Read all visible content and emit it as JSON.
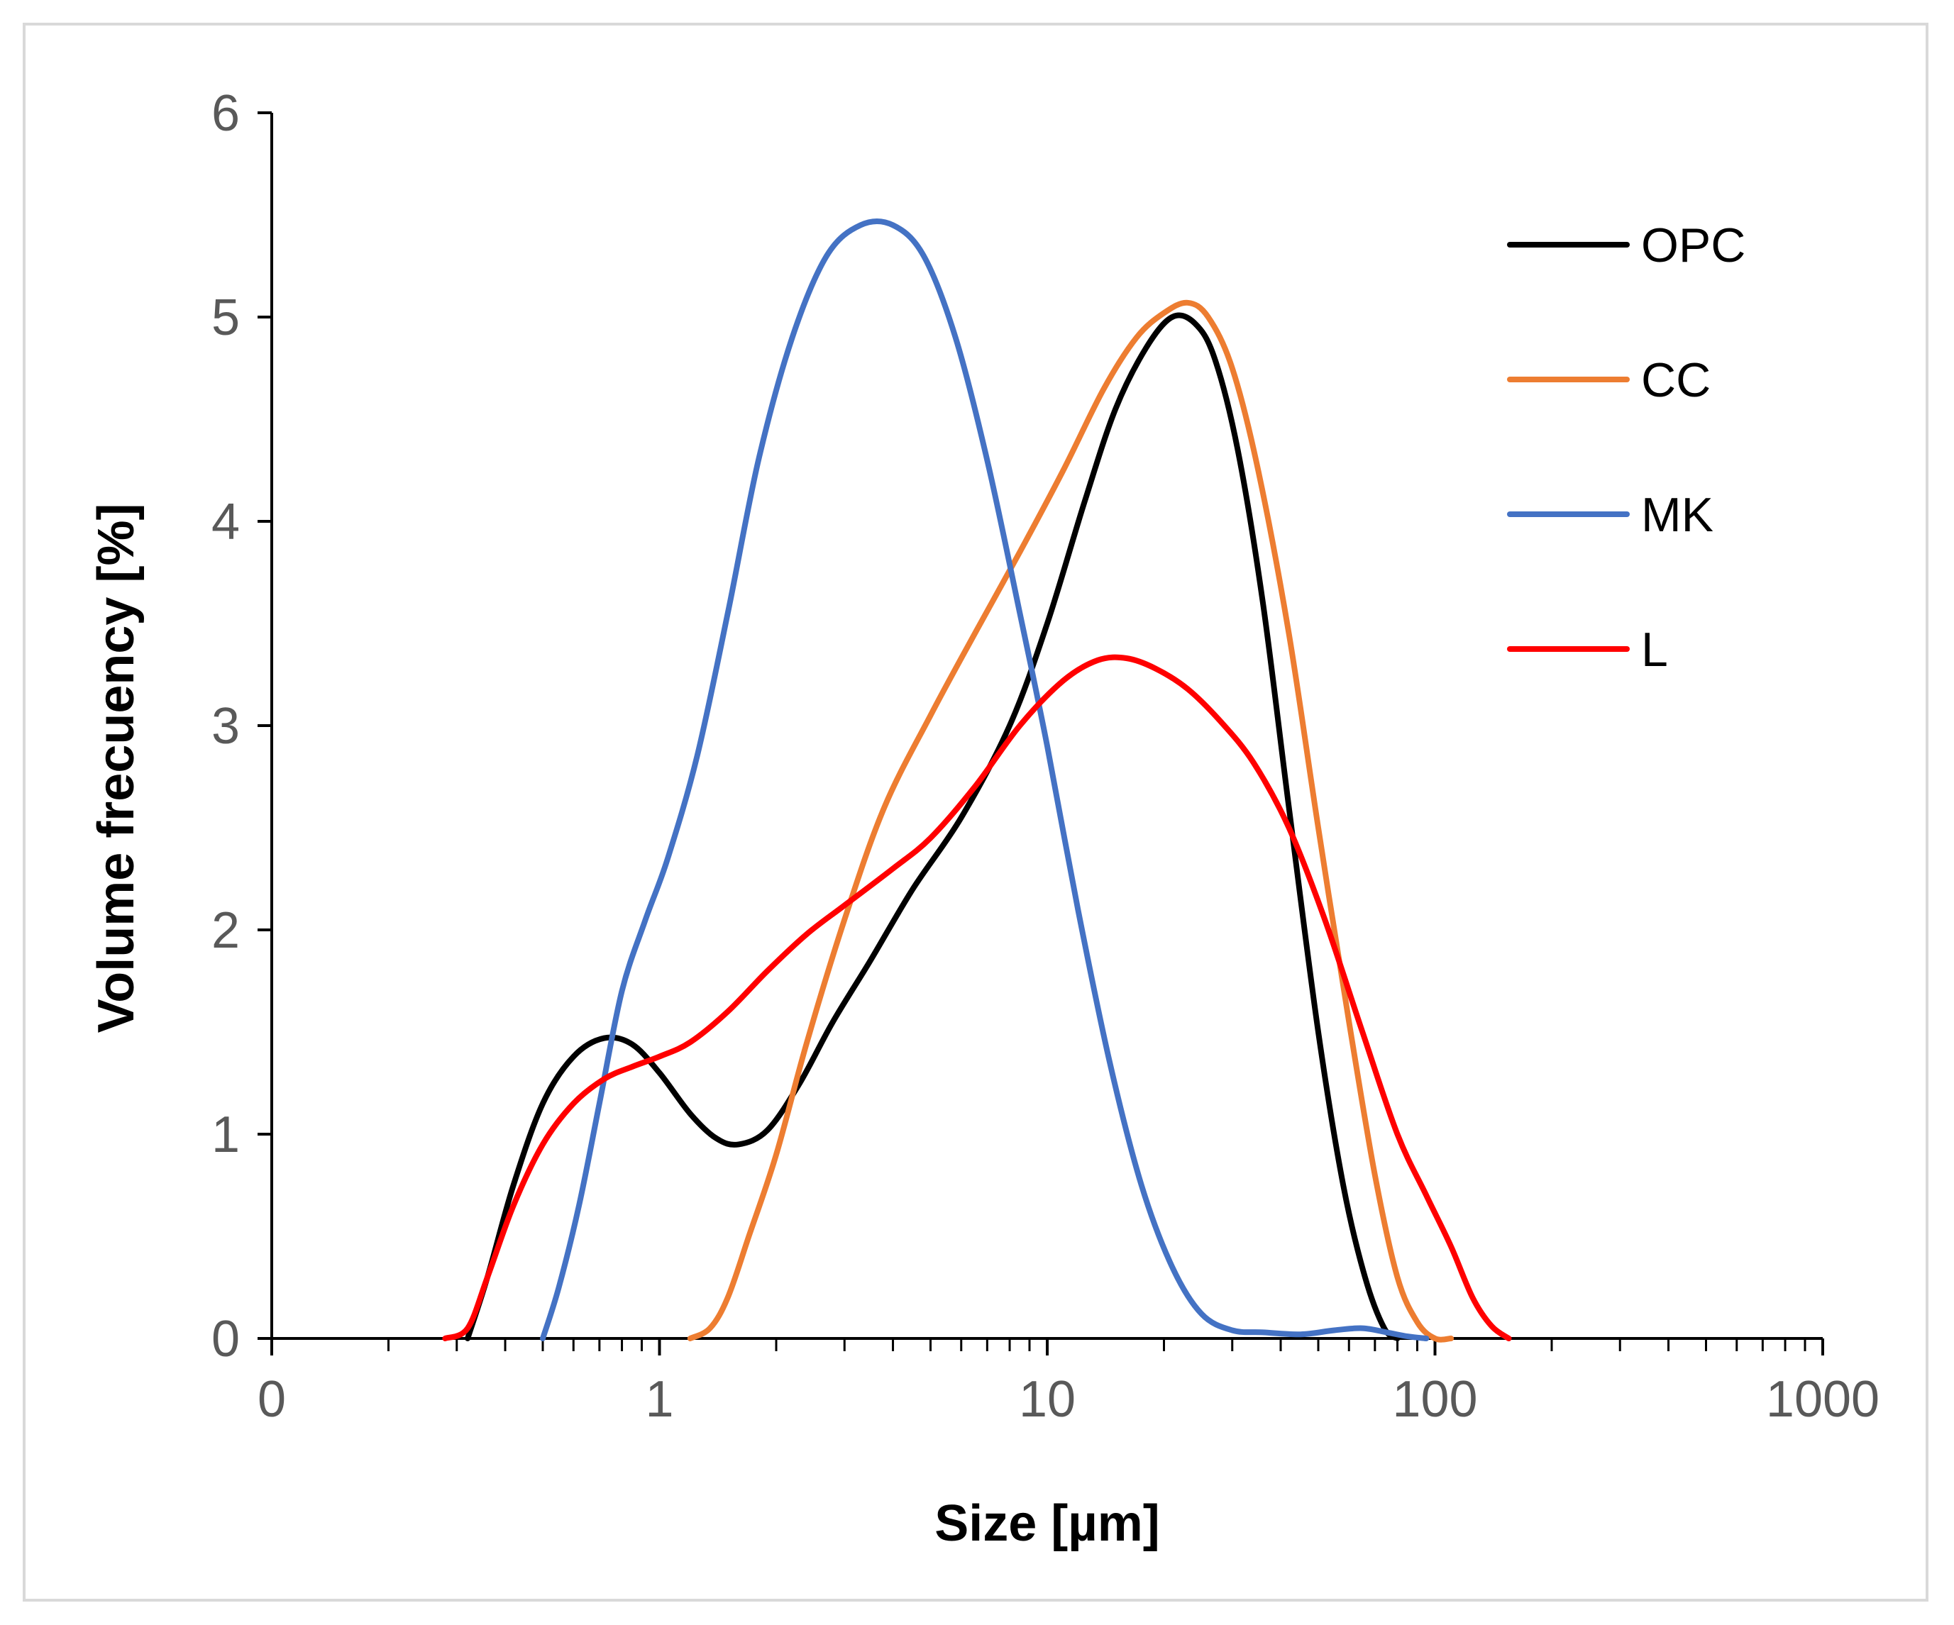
{
  "chart_data": {
    "type": "line",
    "title": "",
    "xlabel": "Size [µm]",
    "ylabel": "Volume frecuency  [%]",
    "xscale": "log",
    "xlim": [
      0.1,
      1000
    ],
    "ylim": [
      0,
      6
    ],
    "x_tick_labels": [
      "0",
      "1",
      "10",
      "100",
      "1000"
    ],
    "x_tick_values": [
      0.1,
      1,
      10,
      100,
      1000
    ],
    "y_ticks": [
      0,
      1,
      2,
      3,
      4,
      5,
      6
    ],
    "grid": false,
    "legend_position": "top-right",
    "series": [
      {
        "name": "OPC",
        "color": "#000000",
        "x": [
          0.32,
          0.36,
          0.42,
          0.5,
          0.6,
          0.72,
          0.85,
          1.0,
          1.2,
          1.4,
          1.6,
          1.9,
          2.3,
          2.8,
          3.5,
          4.5,
          6.0,
          8.0,
          10.0,
          12.5,
          15.0,
          18.0,
          21.0,
          24.0,
          27.0,
          31.0,
          36.0,
          42.0,
          50.0,
          58.0,
          66.0,
          74.0,
          80.0
        ],
        "y": [
          0.0,
          0.3,
          0.75,
          1.15,
          1.38,
          1.47,
          1.44,
          1.3,
          1.1,
          0.98,
          0.95,
          1.02,
          1.25,
          1.55,
          1.85,
          2.2,
          2.55,
          3.0,
          3.5,
          4.1,
          4.55,
          4.85,
          5.0,
          4.97,
          4.8,
          4.35,
          3.6,
          2.6,
          1.5,
          0.75,
          0.3,
          0.05,
          0.0
        ]
      },
      {
        "name": "CC",
        "color": "#ED7D31",
        "x": [
          1.2,
          1.35,
          1.5,
          1.7,
          2.0,
          2.4,
          3.0,
          3.8,
          5.0,
          6.5,
          8.5,
          11.0,
          14.0,
          17.0,
          20.0,
          23.0,
          26.0,
          30.0,
          35.0,
          42.0,
          50.0,
          60.0,
          70.0,
          80.0,
          90.0,
          100.0,
          110.0
        ],
        "y": [
          0.0,
          0.05,
          0.2,
          0.5,
          0.9,
          1.45,
          2.05,
          2.6,
          3.05,
          3.45,
          3.85,
          4.25,
          4.65,
          4.9,
          5.02,
          5.07,
          5.0,
          4.75,
          4.25,
          3.45,
          2.5,
          1.55,
          0.8,
          0.3,
          0.08,
          0.0,
          0.0
        ]
      },
      {
        "name": "MK",
        "color": "#4472C4",
        "x": [
          0.5,
          0.55,
          0.62,
          0.7,
          0.8,
          0.92,
          1.05,
          1.25,
          1.5,
          1.8,
          2.2,
          2.7,
          3.3,
          4.0,
          4.8,
          5.8,
          7.0,
          8.5,
          10.0,
          12.0,
          14.5,
          17.5,
          21.0,
          25.0,
          30.0,
          36.0,
          45.0,
          55.0,
          65.0,
          75.0,
          85.0,
          95.0
        ],
        "y": [
          0.0,
          0.25,
          0.65,
          1.15,
          1.7,
          2.05,
          2.35,
          2.85,
          3.55,
          4.3,
          4.9,
          5.3,
          5.45,
          5.45,
          5.3,
          4.9,
          4.3,
          3.55,
          2.9,
          2.1,
          1.35,
          0.75,
          0.35,
          0.12,
          0.04,
          0.03,
          0.02,
          0.04,
          0.05,
          0.03,
          0.01,
          0.0
        ]
      },
      {
        "name": "L",
        "color": "#FF0000",
        "x": [
          0.28,
          0.32,
          0.36,
          0.42,
          0.5,
          0.6,
          0.72,
          0.85,
          1.0,
          1.2,
          1.5,
          1.9,
          2.4,
          3.0,
          4.0,
          5.0,
          6.5,
          8.5,
          11.0,
          13.5,
          16.0,
          19.0,
          23.0,
          28.0,
          34.0,
          42.0,
          52.0,
          65.0,
          80.0,
          95.0,
          110.0,
          125.0,
          140.0,
          155.0
        ],
        "y": [
          0.0,
          0.05,
          0.3,
          0.65,
          0.95,
          1.15,
          1.27,
          1.33,
          1.38,
          1.45,
          1.6,
          1.8,
          1.98,
          2.12,
          2.3,
          2.45,
          2.7,
          3.0,
          3.22,
          3.32,
          3.33,
          3.28,
          3.18,
          3.02,
          2.82,
          2.5,
          2.05,
          1.5,
          1.0,
          0.7,
          0.45,
          0.2,
          0.06,
          0.0
        ]
      }
    ]
  }
}
